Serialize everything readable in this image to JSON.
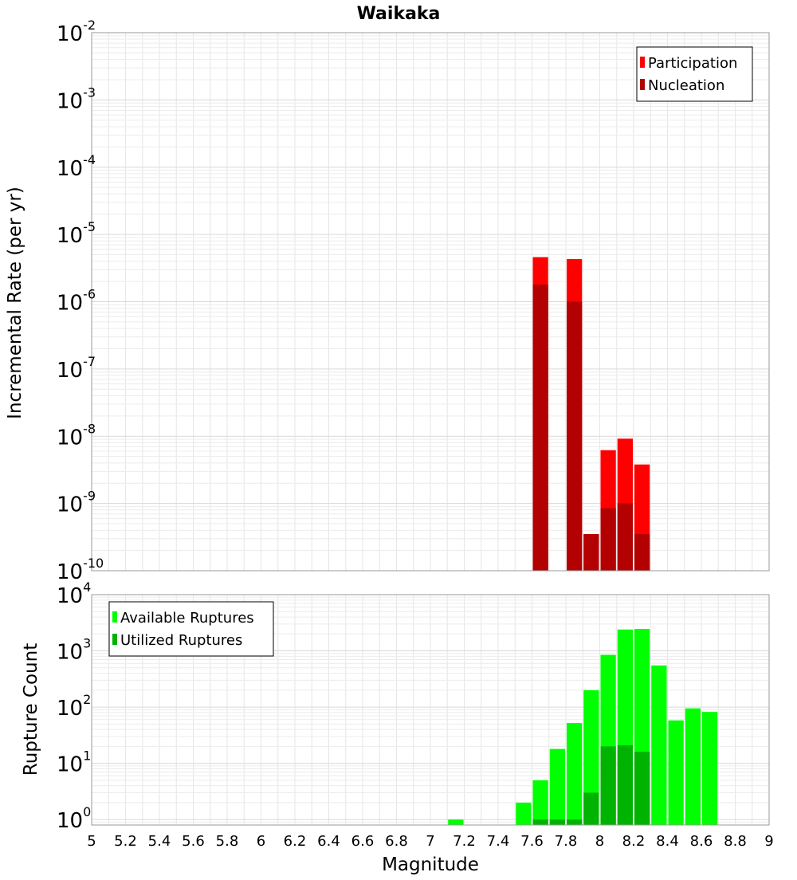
{
  "chart_data": [
    {
      "type": "bar",
      "title": "Waikaka",
      "ylabel": "Incremental Rate (per yr)",
      "xlim": [
        5,
        9
      ],
      "ylim": [
        1e-10,
        0.01
      ],
      "yscale": "log",
      "x_ticks": [
        "5",
        "5.2",
        "5.4",
        "5.6",
        "5.8",
        "6",
        "6.2",
        "6.4",
        "6.6",
        "6.8",
        "7",
        "7.2",
        "7.4",
        "7.6",
        "7.8",
        "8",
        "8.2",
        "8.4",
        "8.6",
        "8.8",
        "9"
      ],
      "y_tick_exponents": [
        "-10",
        "-9",
        "-8",
        "-7",
        "-6",
        "-5",
        "-4",
        "-3",
        "-2"
      ],
      "y_tick_base": "10",
      "grid": true,
      "legend_position": "top-right",
      "series": [
        {
          "name": "Participation",
          "color": "#ff0000",
          "x": [
            7.65,
            7.85,
            7.95,
            8.05,
            8.15,
            8.25
          ],
          "values": [
            4.6e-06,
            4.3e-06,
            3.5e-10,
            6.2e-09,
            9.2e-09,
            3.8e-09
          ]
        },
        {
          "name": "Nucleation",
          "color": "#b30000",
          "x": [
            7.65,
            7.85,
            7.95,
            8.05,
            8.15,
            8.25
          ],
          "values": [
            1.8e-06,
            1e-06,
            3.5e-10,
            8.5e-10,
            1e-09,
            3.5e-10
          ]
        }
      ]
    },
    {
      "type": "bar",
      "xlabel": "Magnitude",
      "ylabel": "Rupture Count",
      "xlim": [
        5,
        9
      ],
      "ylim": [
        0.8,
        10000
      ],
      "yscale": "log",
      "x_ticks": [
        "5",
        "5.2",
        "5.4",
        "5.6",
        "5.8",
        "6",
        "6.2",
        "6.4",
        "6.6",
        "6.8",
        "7",
        "7.2",
        "7.4",
        "7.6",
        "7.8",
        "8",
        "8.2",
        "8.4",
        "8.6",
        "8.8",
        "9"
      ],
      "y_tick_exponents": [
        "0",
        "1",
        "2",
        "3",
        "4"
      ],
      "y_tick_base": "10",
      "grid": true,
      "legend_position": "top-left",
      "series": [
        {
          "name": "Available Ruptures",
          "color": "#00ff00",
          "x": [
            7.15,
            7.55,
            7.65,
            7.75,
            7.85,
            7.95,
            8.05,
            8.15,
            8.25,
            8.35,
            8.45,
            8.55,
            8.65
          ],
          "values": [
            1,
            2,
            5,
            18,
            52,
            200,
            850,
            2400,
            2450,
            550,
            58,
            95,
            82
          ]
        },
        {
          "name": "Utilized Ruptures",
          "color": "#00b300",
          "x": [
            7.65,
            7.75,
            7.85,
            7.95,
            8.05,
            8.15,
            8.25
          ],
          "values": [
            1,
            1,
            1,
            3,
            20,
            21,
            16
          ]
        }
      ]
    }
  ]
}
